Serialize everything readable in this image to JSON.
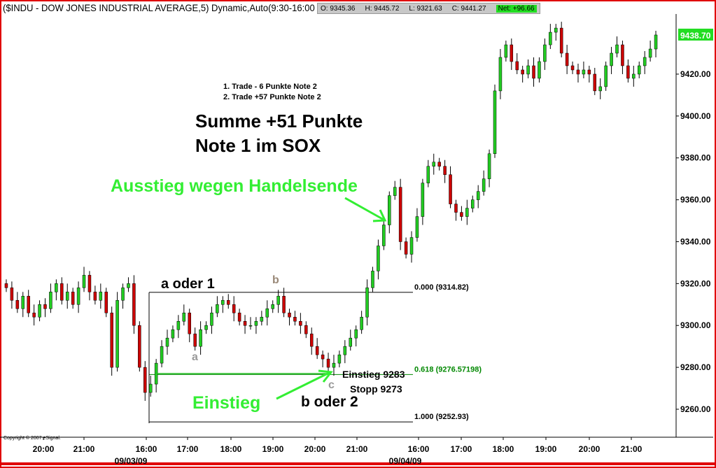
{
  "header": {
    "title": "($INDU - DOW JONES INDUSTRIAL AVERAGE,5) Dynamic,Auto(9:30-16:00",
    "open": "O: 9345.36",
    "high": "H: 9445.72",
    "low": "L: 9321.63",
    "close": "C: 9441.27",
    "net": "Net: +96.66"
  },
  "copyright": "Copyright © 2007 eSignal.",
  "annotations": {
    "trades1": "1. Trade -   6 Punkte Note 2",
    "trades2": "2. Trade +57 Punkte Note 2",
    "summe": "Summe +51 Punkte",
    "note": "Note 1 im SOX",
    "ausstieg": "Ausstieg wegen Handelsende",
    "a1": "a oder 1",
    "b_small": "b",
    "a_small": "a",
    "c_small": "c",
    "einstieg": "Einstieg",
    "einstieg_price": "Einstieg 9283",
    "stopp": "Stopp  9273",
    "b2": "b oder 2"
  },
  "colors": {
    "up": "#22cc22",
    "down": "#cc0000",
    "accent": "#33ee33",
    "fib618": "#008800"
  },
  "chart_data": {
    "type": "candlestick",
    "ylim": [
      9240,
      9450
    ],
    "yticks": [
      9260,
      9280,
      9300,
      9320,
      9340,
      9360,
      9380,
      9400,
      9420
    ],
    "ytick_labels": [
      "9260.00",
      "9280.00",
      "9300.00",
      "9320.00",
      "9340.00",
      "9360.00",
      "9380.00",
      "9400.00",
      "9420.00"
    ],
    "last_price_label": "9438.70",
    "last_price": 9438.7,
    "xtick_labels": [
      "20:00",
      "21:00",
      "16:00",
      "17:00",
      "18:00",
      "19:00",
      "20:00",
      "21:00",
      "16:00",
      "17:00",
      "18:00",
      "19:00",
      "20:00",
      "21:00"
    ],
    "date_labels": [
      "09/03/09",
      "09/04/09"
    ],
    "fib_levels": [
      {
        "label": "0.000 (9314.82)",
        "price": 9314.82
      },
      {
        "label": "0.618 (9276.57198)",
        "price": 9276.57198
      },
      {
        "label": "1.000 (9252.93)",
        "price": 9252.93
      }
    ],
    "closes": [
      9318,
      9312,
      9308,
      9314,
      9306,
      9304,
      9310,
      9308,
      9316,
      9320,
      9312,
      9316,
      9310,
      9318,
      9324,
      9316,
      9312,
      9316,
      9306,
      9280,
      9312,
      9318,
      9320,
      9300,
      9280,
      9268,
      9272,
      9282,
      9290,
      9294,
      9298,
      9302,
      9306,
      9296,
      9290,
      9298,
      9300,
      9306,
      9310,
      9312,
      9310,
      9306,
      9302,
      9300,
      9300,
      9302,
      9304,
      9308,
      9310,
      9314,
      9306,
      9304,
      9302,
      9300,
      9296,
      9290,
      9286,
      9284,
      9280,
      9282,
      9286,
      9290,
      9294,
      9298,
      9304,
      9318,
      9326,
      9338,
      9348,
      9362,
      9366,
      9340,
      9334,
      9342,
      9352,
      9368,
      9376,
      9378,
      9376,
      9372,
      9358,
      9354,
      9352,
      9356,
      9360,
      9364,
      9370,
      9382,
      9412,
      9428,
      9434,
      9426,
      9422,
      9420,
      9424,
      9418,
      9426,
      9434,
      9440,
      9442,
      9430,
      9424,
      9422,
      9420,
      9422,
      9420,
      9412,
      9414,
      9424,
      9430,
      9434,
      9424,
      9418,
      9420,
      9424,
      9428,
      9432,
      9438.7
    ]
  }
}
